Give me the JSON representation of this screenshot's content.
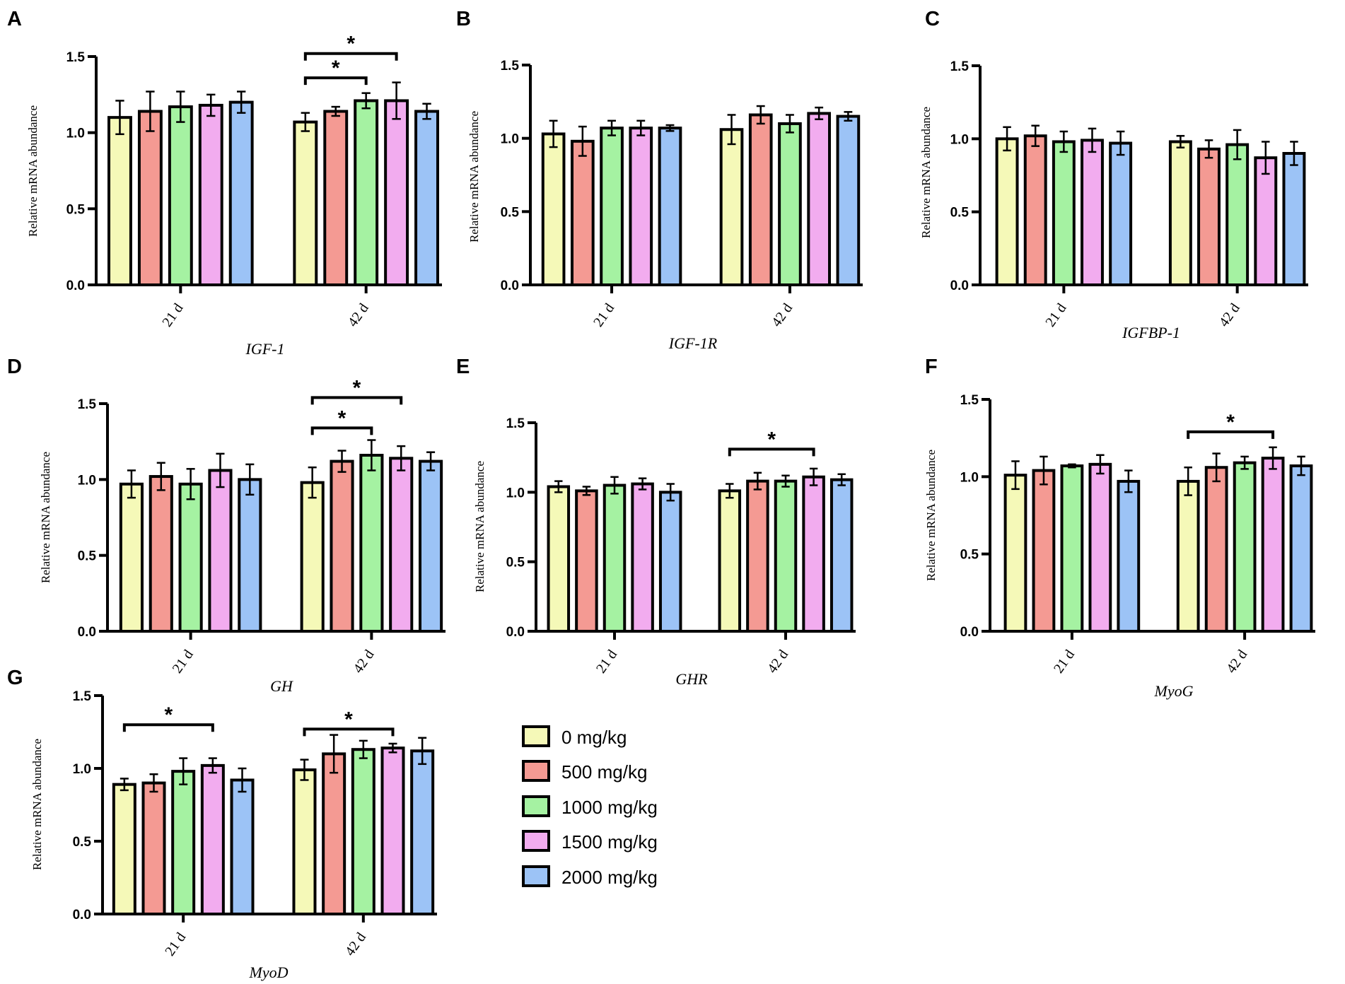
{
  "colors": {
    "0 mg/kg": "#f5f9b8",
    "500 mg/kg": "#f49a93",
    "1000 mg/kg": "#a5f2a2",
    "1500 mg/kg": "#f2acef",
    "2000 mg/kg": "#9cc3f6"
  },
  "legend": {
    "items": [
      "0 mg/kg",
      "500 mg/kg",
      "1000 mg/kg",
      "1500 mg/kg",
      "2000 mg/kg"
    ]
  },
  "chart_data": [
    {
      "panel": "A",
      "type": "bar",
      "gene": "IGF-1",
      "ylabel": "Relative mRNA abundance",
      "categories": [
        "21 d",
        "42 d"
      ],
      "ylim": [
        0,
        1.5
      ],
      "yticks": [
        "0.0",
        "0.5",
        "1.0",
        "1.5"
      ],
      "series": [
        {
          "name": "0 mg/kg",
          "values": [
            1.1,
            1.07
          ],
          "errors": [
            0.11,
            0.06
          ]
        },
        {
          "name": "500 mg/kg",
          "values": [
            1.14,
            1.14
          ],
          "errors": [
            0.13,
            0.03
          ]
        },
        {
          "name": "1000 mg/kg",
          "values": [
            1.17,
            1.21
          ],
          "errors": [
            0.1,
            0.05
          ]
        },
        {
          "name": "1500 mg/kg",
          "values": [
            1.18,
            1.21
          ],
          "errors": [
            0.07,
            0.12
          ]
        },
        {
          "name": "2000 mg/kg",
          "values": [
            1.2,
            1.14
          ],
          "errors": [
            0.07,
            0.05
          ]
        }
      ],
      "significance": [
        {
          "label": "*",
          "category": 1,
          "from": 0,
          "to": 2,
          "level": 1.36
        },
        {
          "label": "*",
          "category": 1,
          "from": 0,
          "to": 3,
          "level": 1.52
        }
      ]
    },
    {
      "panel": "B",
      "type": "bar",
      "gene": "IGF-1R",
      "ylabel": "Relative mRNA abundance",
      "categories": [
        "21 d",
        "42 d"
      ],
      "ylim": [
        0,
        1.5
      ],
      "yticks": [
        "0.0",
        "0.5",
        "1.0",
        "1.5"
      ],
      "series": [
        {
          "name": "0 mg/kg",
          "values": [
            1.03,
            1.06
          ],
          "errors": [
            0.09,
            0.1
          ]
        },
        {
          "name": "500 mg/kg",
          "values": [
            0.98,
            1.16
          ],
          "errors": [
            0.1,
            0.06
          ]
        },
        {
          "name": "1000 mg/kg",
          "values": [
            1.07,
            1.1
          ],
          "errors": [
            0.05,
            0.06
          ]
        },
        {
          "name": "1500 mg/kg",
          "values": [
            1.07,
            1.17
          ],
          "errors": [
            0.05,
            0.04
          ]
        },
        {
          "name": "2000 mg/kg",
          "values": [
            1.07,
            1.15
          ],
          "errors": [
            0.02,
            0.03
          ]
        }
      ],
      "significance": []
    },
    {
      "panel": "C",
      "type": "bar",
      "gene": "IGFBP-1",
      "ylabel": "Relative mRNA abundance",
      "categories": [
        "21 d",
        "42 d"
      ],
      "ylim": [
        0,
        1.5
      ],
      "yticks": [
        "0.0",
        "0.5",
        "1.0",
        "1.5"
      ],
      "series": [
        {
          "name": "0 mg/kg",
          "values": [
            1.0,
            0.98
          ],
          "errors": [
            0.08,
            0.04
          ]
        },
        {
          "name": "500 mg/kg",
          "values": [
            1.02,
            0.93
          ],
          "errors": [
            0.07,
            0.06
          ]
        },
        {
          "name": "1000 mg/kg",
          "values": [
            0.98,
            0.96
          ],
          "errors": [
            0.07,
            0.1
          ]
        },
        {
          "name": "1500 mg/kg",
          "values": [
            0.99,
            0.87
          ],
          "errors": [
            0.08,
            0.11
          ]
        },
        {
          "name": "2000 mg/kg",
          "values": [
            0.97,
            0.9
          ],
          "errors": [
            0.08,
            0.08
          ]
        }
      ],
      "significance": []
    },
    {
      "panel": "D",
      "type": "bar",
      "gene": "GH",
      "ylabel": "Relative mRNA abundance",
      "categories": [
        "21 d",
        "42 d"
      ],
      "ylim": [
        0,
        1.5
      ],
      "yticks": [
        "0.0",
        "0.5",
        "1.0",
        "1.5"
      ],
      "series": [
        {
          "name": "0 mg/kg",
          "values": [
            0.97,
            0.98
          ],
          "errors": [
            0.09,
            0.1
          ]
        },
        {
          "name": "500 mg/kg",
          "values": [
            1.02,
            1.12
          ],
          "errors": [
            0.09,
            0.07
          ]
        },
        {
          "name": "1000 mg/kg",
          "values": [
            0.97,
            1.16
          ],
          "errors": [
            0.1,
            0.1
          ]
        },
        {
          "name": "1500 mg/kg",
          "values": [
            1.06,
            1.14
          ],
          "errors": [
            0.11,
            0.08
          ]
        },
        {
          "name": "2000 mg/kg",
          "values": [
            1.0,
            1.12
          ],
          "errors": [
            0.1,
            0.06
          ]
        }
      ],
      "significance": [
        {
          "label": "*",
          "category": 1,
          "from": 0,
          "to": 2,
          "level": 1.34
        },
        {
          "label": "*",
          "category": 1,
          "from": 0,
          "to": 3,
          "level": 1.54
        }
      ]
    },
    {
      "panel": "E",
      "type": "bar",
      "gene": "GHR",
      "ylabel": "Relative mRNA abundance",
      "categories": [
        "21 d",
        "42 d"
      ],
      "ylim": [
        0,
        1.5
      ],
      "yticks": [
        "0.0",
        "0.5",
        "1.0",
        "1.5"
      ],
      "series": [
        {
          "name": "0 mg/kg",
          "values": [
            1.04,
            1.01
          ],
          "errors": [
            0.04,
            0.05
          ]
        },
        {
          "name": "500 mg/kg",
          "values": [
            1.01,
            1.08
          ],
          "errors": [
            0.03,
            0.06
          ]
        },
        {
          "name": "1000 mg/kg",
          "values": [
            1.05,
            1.08
          ],
          "errors": [
            0.06,
            0.04
          ]
        },
        {
          "name": "1500 mg/kg",
          "values": [
            1.06,
            1.11
          ],
          "errors": [
            0.04,
            0.06
          ]
        },
        {
          "name": "2000 mg/kg",
          "values": [
            1.0,
            1.09
          ],
          "errors": [
            0.06,
            0.04
          ]
        }
      ],
      "significance": [
        {
          "label": "*",
          "category": 1,
          "from": 0,
          "to": 3,
          "level": 1.31
        }
      ]
    },
    {
      "panel": "F",
      "type": "bar",
      "gene": "MyoG",
      "ylabel": "Relative mRNA abundance",
      "categories": [
        "21 d",
        "42 d"
      ],
      "ylim": [
        0,
        1.5
      ],
      "yticks": [
        "0.0",
        "0.5",
        "1.0",
        "1.5"
      ],
      "series": [
        {
          "name": "0 mg/kg",
          "values": [
            1.01,
            0.97
          ],
          "errors": [
            0.09,
            0.09
          ]
        },
        {
          "name": "500 mg/kg",
          "values": [
            1.04,
            1.06
          ],
          "errors": [
            0.09,
            0.09
          ]
        },
        {
          "name": "1000 mg/kg",
          "values": [
            1.07,
            1.09
          ],
          "errors": [
            0.01,
            0.04
          ]
        },
        {
          "name": "1500 mg/kg",
          "values": [
            1.08,
            1.12
          ],
          "errors": [
            0.06,
            0.07
          ]
        },
        {
          "name": "2000 mg/kg",
          "values": [
            0.97,
            1.07
          ],
          "errors": [
            0.07,
            0.06
          ]
        }
      ],
      "significance": [
        {
          "label": "*",
          "category": 1,
          "from": 0,
          "to": 3,
          "level": 1.29
        }
      ]
    },
    {
      "panel": "G",
      "type": "bar",
      "gene": "MyoD",
      "ylabel": "Relative mRNA abundance",
      "categories": [
        "21 d",
        "42 d"
      ],
      "ylim": [
        0,
        1.5
      ],
      "yticks": [
        "0.0",
        "0.5",
        "1.0",
        "1.5"
      ],
      "series": [
        {
          "name": "0 mg/kg",
          "values": [
            0.89,
            0.99
          ],
          "errors": [
            0.04,
            0.07
          ]
        },
        {
          "name": "500 mg/kg",
          "values": [
            0.9,
            1.1
          ],
          "errors": [
            0.06,
            0.13
          ]
        },
        {
          "name": "1000 mg/kg",
          "values": [
            0.98,
            1.13
          ],
          "errors": [
            0.09,
            0.06
          ]
        },
        {
          "name": "1500 mg/kg",
          "values": [
            1.02,
            1.14
          ],
          "errors": [
            0.05,
            0.03
          ]
        },
        {
          "name": "2000 mg/kg",
          "values": [
            0.92,
            1.12
          ],
          "errors": [
            0.08,
            0.09
          ]
        }
      ],
      "significance": [
        {
          "label": "*",
          "category": 0,
          "from": 0,
          "to": 3,
          "level": 1.3
        },
        {
          "label": "*",
          "category": 1,
          "from": 0,
          "to": 3,
          "level": 1.27
        }
      ]
    }
  ]
}
